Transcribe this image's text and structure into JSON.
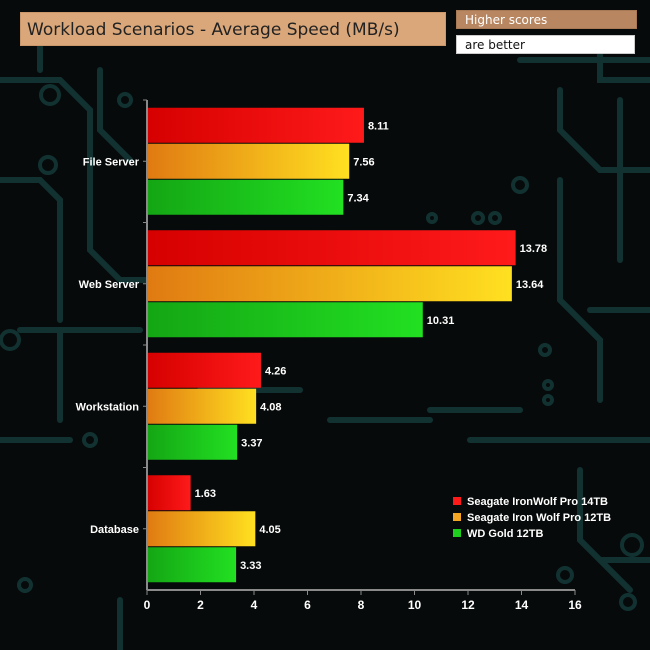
{
  "header": {
    "title": "Workload Scenarios - Average Speed (MB/s)",
    "note_line1": "Higher scores",
    "note_line2": "are better"
  },
  "colors": {
    "background": "#070a0a",
    "circuit": "#123232",
    "axis": "#8a8a8a"
  },
  "chart_data": {
    "type": "bar",
    "orientation": "horizontal",
    "title": "Workload Scenarios - Average Speed (MB/s)",
    "xlabel": "",
    "ylabel": "",
    "categories": [
      "File Server",
      "Web Server",
      "Workstation",
      "Database"
    ],
    "series": [
      {
        "name": "Seagate IronWolf Pro 14TB",
        "values": [
          8.11,
          13.78,
          4.26,
          1.63
        ],
        "color": "#ff1a1a"
      },
      {
        "name": "Seagate Iron Wolf Pro 12TB",
        "values": [
          7.56,
          13.64,
          4.08,
          4.05
        ],
        "color": "#f5a623"
      },
      {
        "name": "WD Gold 12TB",
        "values": [
          7.34,
          10.31,
          3.37,
          3.33
        ],
        "color": "#1ecf1e"
      }
    ],
    "xlim": [
      0,
      16
    ],
    "xticks": [
      "0",
      "2",
      "4",
      "6",
      "8",
      "10",
      "12",
      "14",
      "16"
    ],
    "value_labels": [
      [
        "8.11",
        "13.78",
        "4.26",
        "1.63"
      ],
      [
        "7.56",
        "13.64",
        "4.08",
        "4.05"
      ],
      [
        "7.34",
        "10.31",
        "3.37",
        "3.33"
      ]
    ],
    "grid": false,
    "legend_position": "bottom-right"
  }
}
